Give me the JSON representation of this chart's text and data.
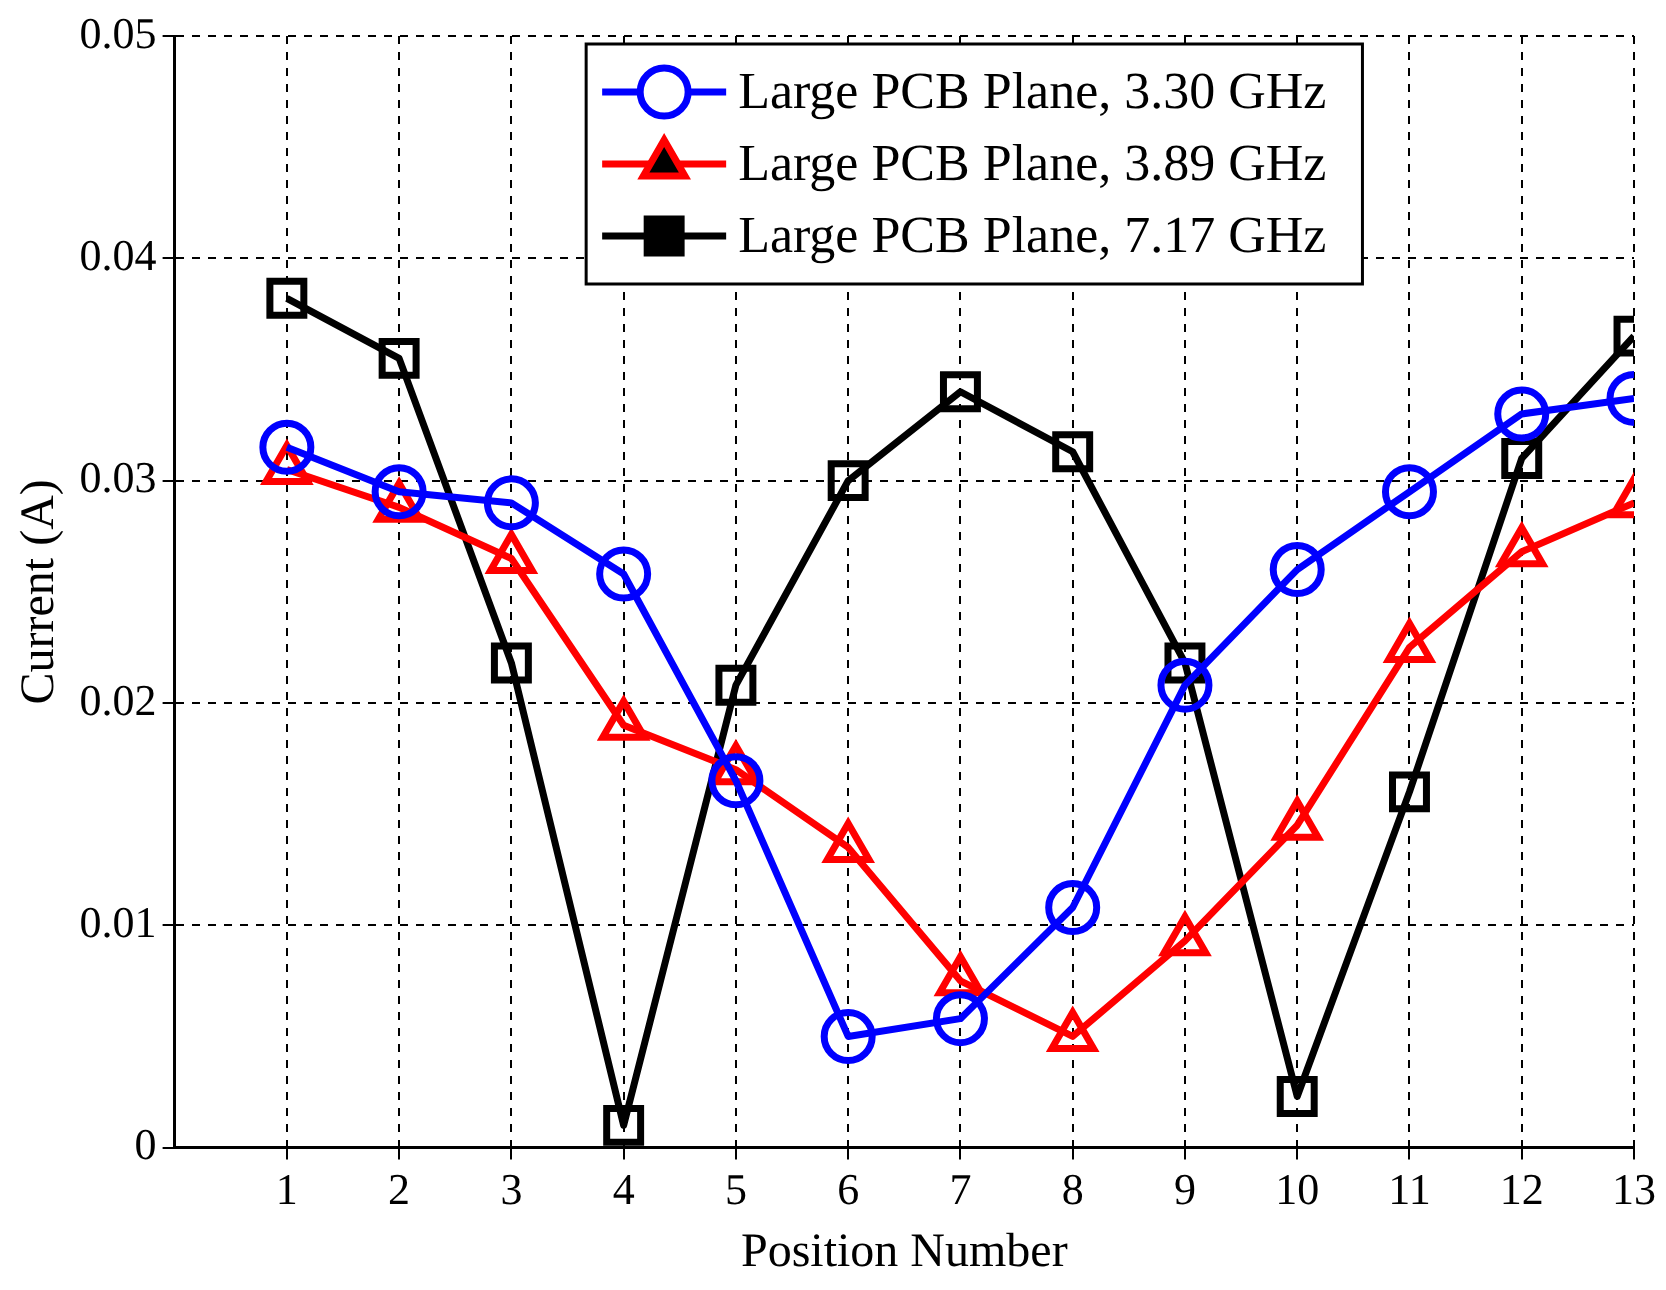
{
  "chart_data": {
    "type": "line",
    "xlabel": "Position Number",
    "ylabel": "Current (A)",
    "x": [
      1,
      2,
      3,
      4,
      5,
      6,
      7,
      8,
      9,
      10,
      11,
      12,
      13
    ],
    "xlim": [
      0,
      13
    ],
    "xticks": [
      1,
      2,
      3,
      4,
      5,
      6,
      7,
      8,
      9,
      10,
      11,
      12,
      13
    ],
    "ylim": [
      0,
      0.05
    ],
    "yticks": [
      0,
      0.01,
      0.02,
      0.03,
      0.04,
      0.05
    ],
    "grid": true,
    "legend": "top",
    "line_style": "solid",
    "series": [
      {
        "name": "Large PCB Plane, 3.30 GHz",
        "color": "#0000ff",
        "marker": "circle",
        "values": [
          0.0315,
          0.0295,
          0.029,
          0.0258,
          0.0165,
          0.005,
          0.0058,
          0.0108,
          0.0208,
          0.026,
          0.0295,
          0.033,
          0.0337
        ]
      },
      {
        "name": "Large PCB Plane, 3.89 GHz",
        "color": "#ff0000",
        "marker": "triangle",
        "values": [
          0.0305,
          0.0288,
          0.0265,
          0.019,
          0.017,
          0.0135,
          0.0075,
          0.005,
          0.0093,
          0.0145,
          0.0225,
          0.0268,
          0.029
        ]
      },
      {
        "name": "Large PCB Plane, 7.17 GHz",
        "color": "#000000",
        "marker": "square",
        "values": [
          0.0382,
          0.0355,
          0.0218,
          0.001,
          0.0208,
          0.03,
          0.034,
          0.0313,
          0.0218,
          0.0023,
          0.016,
          0.031,
          0.0365
        ]
      }
    ]
  }
}
